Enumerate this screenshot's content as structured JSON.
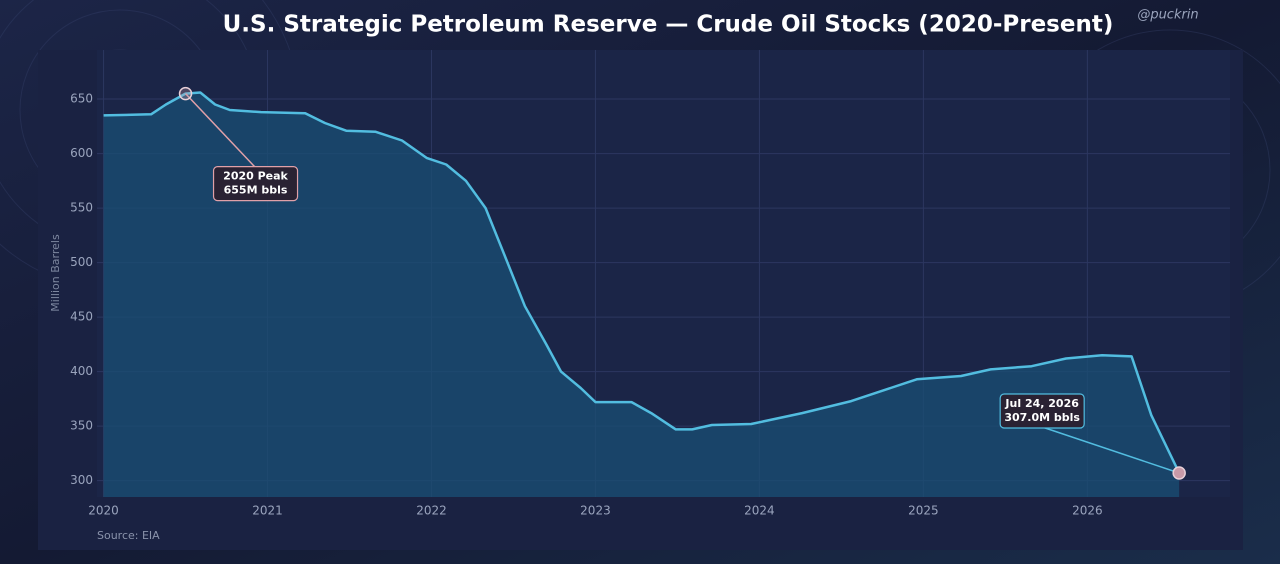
{
  "chart_data": {
    "type": "area-line",
    "title": "U.S. Strategic Petroleum Reserve — Crude Oil Stocks (2020-Present)",
    "watermark": "@puckrin",
    "source": "Source: EIA",
    "ylabel": "Million Barrels",
    "color": "#52bde0",
    "x": [
      2020.0,
      2020.29,
      2020.38,
      2020.5,
      2020.59,
      2020.68,
      2020.77,
      2020.96,
      2021.23,
      2021.35,
      2021.48,
      2021.66,
      2021.82,
      2021.97,
      2022.09,
      2022.21,
      2022.33,
      2022.45,
      2022.57,
      2022.7,
      2022.79,
      2022.91,
      2023.0,
      2023.22,
      2023.34,
      2023.49,
      2023.59,
      2023.71,
      2023.95,
      2024.26,
      2024.56,
      2024.8,
      2024.96,
      2025.23,
      2025.41,
      2025.66,
      2025.87,
      2026.09,
      2026.27,
      2026.39,
      2026.56
    ],
    "values": [
      635,
      636,
      645,
      655,
      656,
      645,
      640,
      638,
      637,
      628,
      621,
      620,
      612,
      596,
      590,
      575,
      550,
      505,
      460,
      425,
      400,
      385,
      372,
      372,
      362,
      347,
      347,
      351,
      352,
      362,
      373,
      385,
      393,
      396,
      402,
      405,
      412,
      415,
      414,
      360,
      307
    ],
    "xlim": [
      2019.96,
      2026.87
    ],
    "ylim": [
      285,
      695
    ],
    "xticks": [
      2020,
      2021,
      2022,
      2023,
      2024,
      2025,
      2026
    ],
    "yticks": [
      300,
      350,
      400,
      450,
      500,
      550,
      600,
      650
    ],
    "grid": true,
    "annotations": [
      {
        "text": [
          "2020 Peak",
          "655M bbls"
        ],
        "x": 2020.5,
        "y": 655,
        "color": "#e0a0a8"
      },
      {
        "text": [
          "Jul 24, 2026",
          "307.0M bbls"
        ],
        "x": 2026.56,
        "y": 307,
        "color": "#52bde0"
      }
    ]
  }
}
